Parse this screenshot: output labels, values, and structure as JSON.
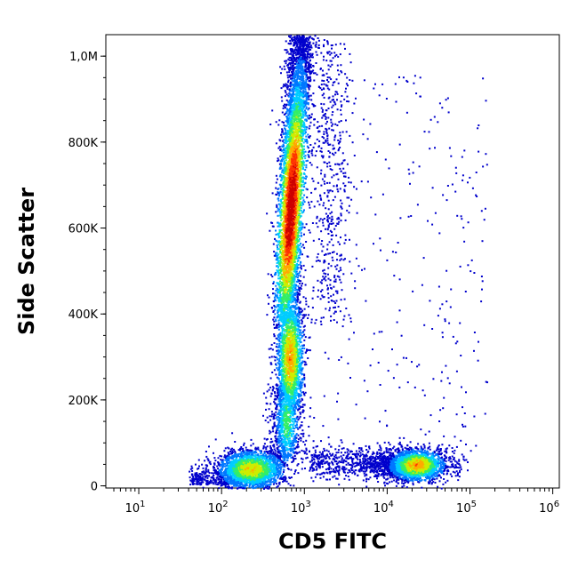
{
  "chart_data": {
    "type": "scatter",
    "title": "",
    "xlabel": "CD5 FITC",
    "ylabel": "Side Scatter",
    "x_scale": "log",
    "xlim": [
      4,
      1200000
    ],
    "ylim": [
      -5000,
      1050000
    ],
    "x_ticks": [
      {
        "value": 10,
        "base": "10",
        "exp": "1"
      },
      {
        "value": 100,
        "base": "10",
        "exp": "2"
      },
      {
        "value": 1000,
        "base": "10",
        "exp": "3"
      },
      {
        "value": 10000,
        "base": "10",
        "exp": "4"
      },
      {
        "value": 100000,
        "base": "10",
        "exp": "5"
      },
      {
        "value": 1000000,
        "base": "10",
        "exp": "6"
      }
    ],
    "y_ticks": [
      {
        "value": 0,
        "label": "0"
      },
      {
        "value": 200000,
        "label": "200K"
      },
      {
        "value": 400000,
        "label": "400K"
      },
      {
        "value": 600000,
        "label": "600K"
      },
      {
        "value": 800000,
        "label": "800K"
      },
      {
        "value": 1000000,
        "label": "1,0M"
      }
    ],
    "grid": false,
    "colormap": [
      "#0000cc",
      "#0077ff",
      "#00ccff",
      "#33ee66",
      "#ccee00",
      "#ffaa00",
      "#ff3300",
      "#cc0000"
    ],
    "populations": [
      {
        "x_center": 700,
        "y_center": 650000,
        "density": 0.95
      },
      {
        "x_center": 680,
        "y_center": 300000,
        "density": 0.75
      },
      {
        "x_center": 200,
        "y_center": 40000,
        "density": 0.6
      },
      {
        "x_center": 20000,
        "y_center": 50000,
        "density": 0.7
      }
    ]
  }
}
